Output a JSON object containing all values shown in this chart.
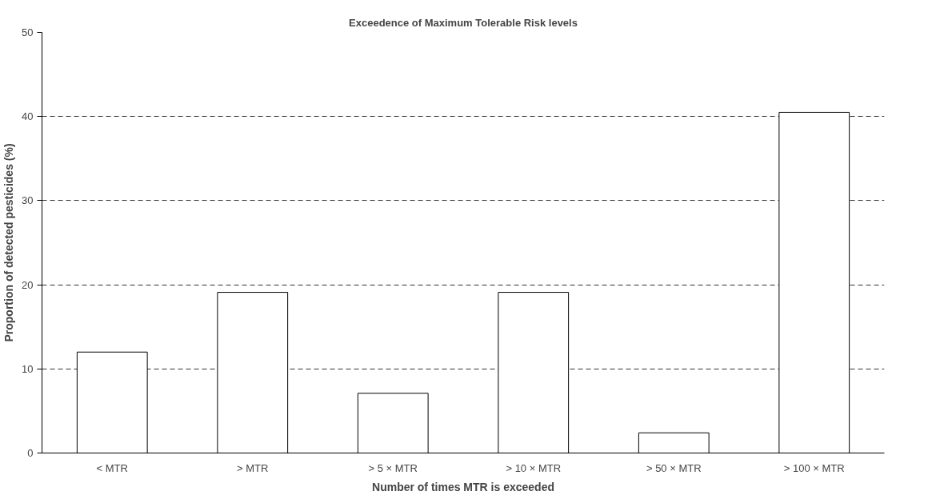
{
  "chart_data": {
    "type": "bar",
    "title": "Exceedence of Maximum Tolerable Risk levels",
    "xlabel": "Number of times MTR is exceeded",
    "ylabel": "Proportion of detected pesticides (%)",
    "categories": [
      "< MTR",
      "> MTR",
      "> 5 × MTR",
      "> 10 × MTR",
      "> 50 × MTR",
      "> 100 × MTR"
    ],
    "values": [
      12.0,
      19.1,
      7.1,
      19.1,
      2.4,
      40.5
    ],
    "color": "#ffffff",
    "ylim": [
      0,
      50
    ],
    "yticks": [
      0,
      10,
      20,
      30,
      40,
      50
    ],
    "grid": "y"
  }
}
